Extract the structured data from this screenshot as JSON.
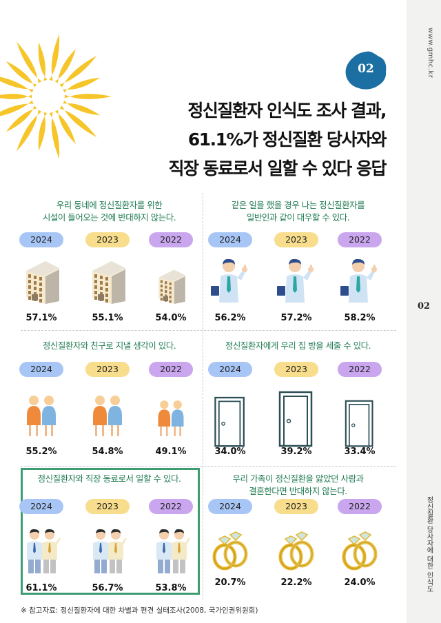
{
  "side": {
    "url": "www.gmhc.kr",
    "page_number": "02",
    "title": "정신질환 당사자에 대한 인식도"
  },
  "badge": "02",
  "title_lines": [
    "정신질환자 인식도 조사 결과,",
    "61.1%가 정신질환 당사자와",
    "직장 동료로서 일할 수 있다 응답"
  ],
  "colors": {
    "green": "#1f7a52",
    "pill_2024": "#a8c6f5",
    "pill_2023": "#f7dd8c",
    "pill_2022": "#c9a6ee",
    "badge": "#1c6fa3",
    "sun": "#f6c52a"
  },
  "years": [
    "2024",
    "2023",
    "2022"
  ],
  "cells": [
    {
      "title_lines": [
        "우리 동네에 정신질환자를 위한",
        "시설이 들어오는 것에 반대하지 않는다."
      ],
      "icon": "building-icon",
      "values": [
        "57.1%",
        "55.1%",
        "54.0%"
      ]
    },
    {
      "title_lines": [
        "같은 일을 했을 경우 나는 정신질환자를",
        "일반인과 같이 대우할 수 있다."
      ],
      "icon": "thumbs-up-man-icon",
      "values": [
        "56.2%",
        "57.2%",
        "58.2%"
      ]
    },
    {
      "title_lines": [
        "정신질환자와 친구로 지낼 생각이 있다."
      ],
      "icon": "friends-icon",
      "values": [
        "55.2%",
        "54.8%",
        "49.1%"
      ]
    },
    {
      "title_lines": [
        "정신질환자에게 우리 집 방을 세줄 수 있다."
      ],
      "icon": "door-icon",
      "values": [
        "34.0%",
        "39.2%",
        "33.4%"
      ]
    },
    {
      "title_lines": [
        "정신질환자와 직장 동료로서 일할 수 있다."
      ],
      "icon": "coworkers-icon",
      "values": [
        "61.1%",
        "56.7%",
        "53.8%"
      ]
    },
    {
      "title_lines": [
        "우리 가족이 정신질환을 앓았던 사람과",
        "결혼한다면 반대하지 않는다."
      ],
      "icon": "rings-icon",
      "values": [
        "20.7%",
        "22.2%",
        "24.0%"
      ]
    }
  ],
  "footnote": "※ 참고자료: 정신질환자에 대한 차별과 편견 실태조사(2008, 국가인권위원회)"
}
